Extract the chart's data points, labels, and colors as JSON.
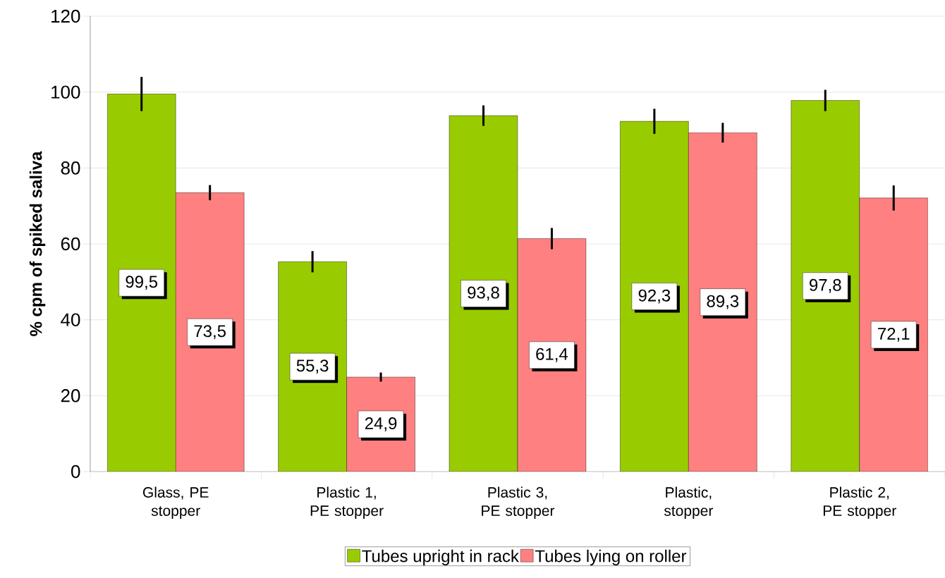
{
  "chart_data": {
    "type": "bar",
    "ylabel": "% cpm of spiked saliva",
    "categories": [
      "Glass, PE stopper",
      "Plastic 1, PE stopper",
      "Plastic 3, PE stopper",
      "Plastic, stopper",
      "Plastic 2, PE stopper"
    ],
    "series": [
      {
        "name": "Tubes upright in rack",
        "color": "#99cc00",
        "values": [
          99.5,
          55.3,
          93.8,
          92.3,
          97.8
        ],
        "errors": [
          4.5,
          2.8,
          2.7,
          3.3,
          2.8
        ],
        "value_labels": [
          "99,5",
          "55,3",
          "93,8",
          "92,3",
          "97,8"
        ]
      },
      {
        "name": "Tubes lying on roller",
        "color": "#ff8080",
        "values": [
          73.5,
          24.9,
          61.4,
          89.3,
          72.1
        ],
        "errors": [
          2,
          1.2,
          2.8,
          2.6,
          3.3
        ],
        "value_labels": [
          "73,5",
          "24,9",
          "61,4",
          "89,3",
          "72,1"
        ]
      }
    ],
    "ylim": [
      0,
      120
    ],
    "yticks": [
      0,
      20,
      40,
      60,
      80,
      100,
      120
    ],
    "grid": "y",
    "legend": "bottom"
  }
}
